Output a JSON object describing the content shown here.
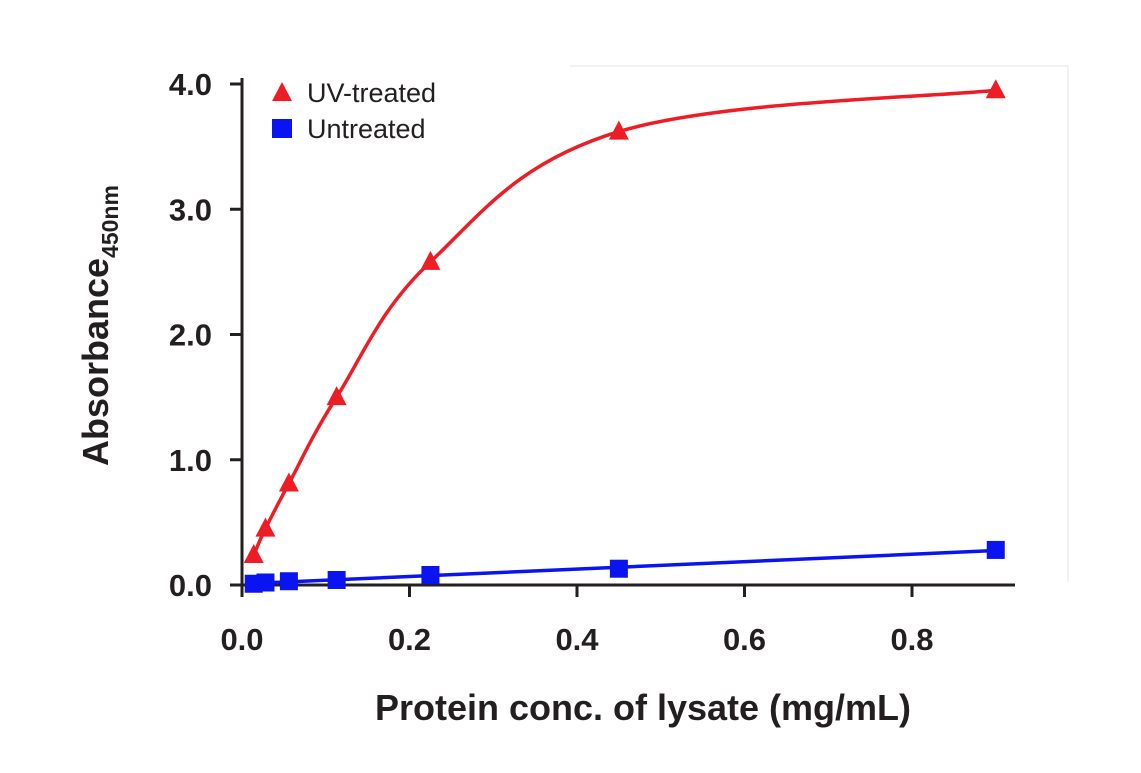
{
  "chart_data": {
    "type": "scatter",
    "title": "",
    "xlabel": "Protein conc. of lysate (mg/mL)",
    "ylabel": "Absorbance",
    "ylabel_subscript": "450nm",
    "xlim": [
      0,
      0.92
    ],
    "ylim": [
      0,
      4.0
    ],
    "x_ticks": [
      0.0,
      0.2,
      0.4,
      0.6,
      0.8
    ],
    "x_tick_labels": [
      "0.0",
      "0.2",
      "0.4",
      "0.6",
      "0.8"
    ],
    "y_ticks": [
      0.0,
      1.0,
      2.0,
      3.0,
      4.0
    ],
    "y_tick_labels": [
      "0.0",
      "1.0",
      "2.0",
      "3.0",
      "4.0"
    ],
    "grid": false,
    "legend_position": "top-left",
    "series": [
      {
        "name": "UV-treated",
        "color": "#ee1c25",
        "marker": "triangle",
        "fit": "saturation",
        "x": [
          0.014,
          0.028,
          0.056,
          0.113,
          0.225,
          0.45,
          0.9
        ],
        "y": [
          0.24,
          0.45,
          0.81,
          1.5,
          2.58,
          3.62,
          3.95
        ]
      },
      {
        "name": "Untreated",
        "color": "#0a14f0",
        "marker": "square",
        "fit": "linear",
        "x": [
          0.014,
          0.028,
          0.056,
          0.113,
          0.225,
          0.45,
          0.9
        ],
        "y": [
          0.01,
          0.02,
          0.03,
          0.04,
          0.08,
          0.13,
          0.28
        ]
      }
    ]
  }
}
